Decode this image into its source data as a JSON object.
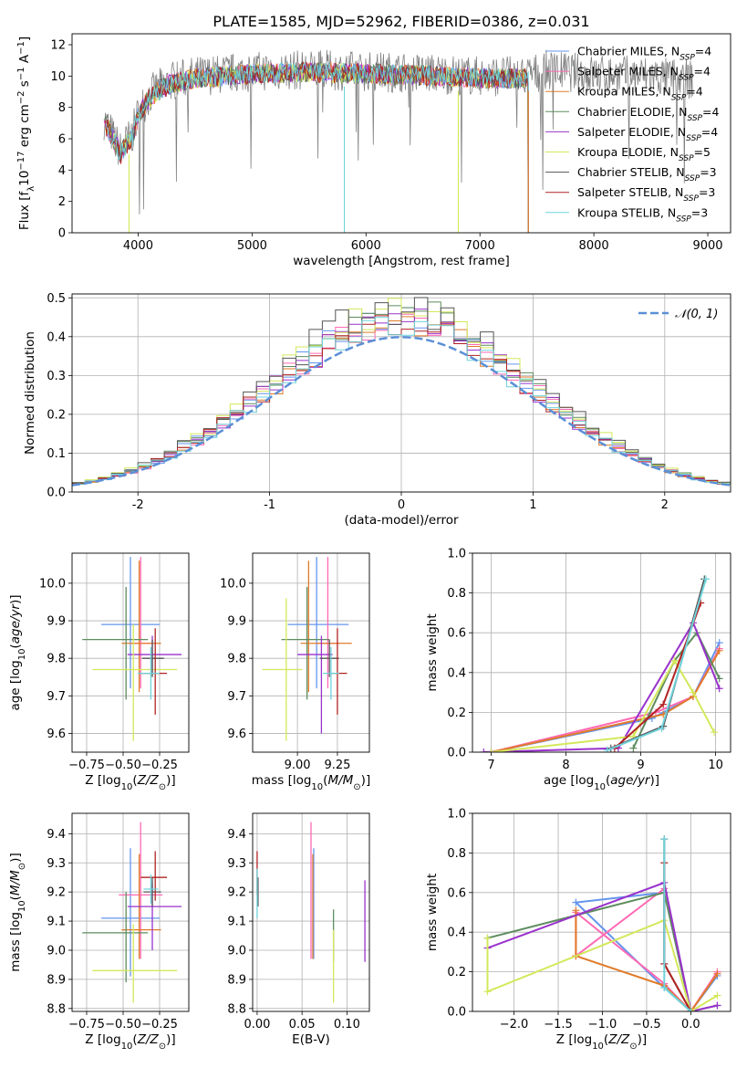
{
  "figure": {
    "title": "PLATE=1585, MJD=52962, FIBERID=0386, z=0.031"
  },
  "model_colors": {
    "Chabrier MILES": "#6495ed",
    "Salpeter MILES": "#ff69b4",
    "Kroupa MILES": "#e07b2a",
    "Chabrier ELODIE": "#5e8c5e",
    "Salpeter ELODIE": "#9932cc",
    "Kroupa ELODIE": "#d4e85a",
    "Chabrier STELIB": "#555555",
    "Salpeter STELIB": "#b22222",
    "Kroupa STELIB": "#6fd3dc"
  },
  "chart_data": [
    {
      "id": "spectrum",
      "type": "line",
      "title": "PLATE=1585, MJD=52962, FIBERID=0386, z=0.031",
      "xlabel": "wavelength [Angstrom, rest frame]",
      "ylabel": "Flux [f",
      "xlim": [
        3420,
        9200
      ],
      "ylim": [
        0,
        12.7
      ],
      "xticks": [
        4000,
        5000,
        6000,
        7000,
        8000,
        9000
      ],
      "yticks": [
        0,
        2,
        4,
        6,
        8,
        10,
        12
      ],
      "grid": false,
      "legend_position": "top-right",
      "legend": [
        {
          "label": "Chabrier MILES, N",
          "n": "4"
        },
        {
          "label": "Salpeter MILES, N",
          "n": "4"
        },
        {
          "label": "Kroupa MILES, N",
          "n": "4"
        },
        {
          "label": "Chabrier ELODIE, N",
          "n": "4"
        },
        {
          "label": "Salpeter ELODIE, N",
          "n": "4"
        },
        {
          "label": "Kroupa ELODIE, N",
          "n": "5"
        },
        {
          "label": "Chabrier STELIB, N",
          "n": "3"
        },
        {
          "label": "Salpeter STELIB, N",
          "n": "3"
        },
        {
          "label": "Kroupa STELIB, N",
          "n": "3"
        }
      ],
      "envelope_points": [
        [
          3700,
          7.2
        ],
        [
          3750,
          6.6
        ],
        [
          3800,
          5.8
        ],
        [
          3850,
          5.2
        ],
        [
          3900,
          5.8
        ],
        [
          3950,
          6.3
        ],
        [
          4000,
          7.6
        ],
        [
          4100,
          8.8
        ],
        [
          4200,
          9.3
        ],
        [
          4300,
          9.7
        ],
        [
          4500,
          10.0
        ],
        [
          4700,
          10.1
        ],
        [
          5000,
          10.3
        ],
        [
          5500,
          10.4
        ],
        [
          6000,
          10.3
        ],
        [
          6500,
          10.2
        ],
        [
          7000,
          10.0
        ],
        [
          7400,
          10.0
        ],
        [
          7600,
          10.4
        ],
        [
          8000,
          10.1
        ],
        [
          8500,
          10.0
        ],
        [
          8800,
          9.8
        ]
      ],
      "model_end_wavelength": 7425,
      "data_end_wavelength": 8870
    },
    {
      "id": "residuals",
      "type": "histogram",
      "xlabel": "(data-model)/error",
      "ylabel": "Normed distribution",
      "xlim": [
        -2.5,
        2.5
      ],
      "ylim": [
        0,
        0.51
      ],
      "xticks": [
        -2,
        -1,
        0,
        1,
        2
      ],
      "yticks": [
        0.0,
        0.1,
        0.2,
        0.3,
        0.4,
        0.5
      ],
      "grid": true,
      "legend_position": "top-right",
      "reference_label": "𝒩(0, 1)",
      "bin_width": 0.1,
      "series_peaks": [
        0.46,
        0.45,
        0.45,
        0.48,
        0.45,
        0.48,
        0.49,
        0.45,
        0.44
      ]
    },
    {
      "id": "age_vs_Z",
      "type": "errorbar",
      "xlabel": "Z [log",
      "ylabel": "age  [log",
      "xlim": [
        -0.85,
        -0.05
      ],
      "ylim": [
        9.55,
        10.08
      ],
      "xticks": [
        -0.75,
        -0.5,
        -0.25
      ],
      "yticks": [
        9.6,
        9.7,
        9.8,
        9.9,
        10.0
      ],
      "grid": true,
      "points": [
        {
          "model": "Chabrier MILES",
          "x": -0.45,
          "xerr": [
            0.2,
            0.2
          ],
          "y": 9.89,
          "yerr": [
            0.17,
            0.18
          ]
        },
        {
          "model": "Salpeter MILES",
          "x": -0.38,
          "xerr": [
            0.07,
            0.07
          ],
          "y": 9.84,
          "yerr": [
            0.12,
            0.23
          ]
        },
        {
          "model": "Kroupa MILES",
          "x": -0.39,
          "xerr": [
            0.12,
            0.15
          ],
          "y": 9.84,
          "yerr": [
            0.13,
            0.22
          ]
        },
        {
          "model": "Chabrier ELODIE",
          "x": -0.48,
          "xerr": [
            0.3,
            0.15
          ],
          "y": 9.85,
          "yerr": [
            0.16,
            0.14
          ]
        },
        {
          "model": "Salpeter ELODIE",
          "x": -0.3,
          "xerr": [
            0.17,
            0.2
          ],
          "y": 9.81,
          "yerr": [
            0.05,
            0.05
          ]
        },
        {
          "model": "Kroupa ELODIE",
          "x": -0.43,
          "xerr": [
            0.28,
            0.3
          ],
          "y": 9.77,
          "yerr": [
            0.19,
            0.12
          ]
        },
        {
          "model": "Chabrier STELIB",
          "x": -0.3,
          "xerr": [
            0.07,
            0.08
          ],
          "y": 9.8,
          "yerr": [
            0.05,
            0.05
          ]
        },
        {
          "model": "Salpeter STELIB",
          "x": -0.28,
          "xerr": [
            0.1,
            0.08
          ],
          "y": 9.76,
          "yerr": [
            0.11,
            0.12
          ]
        },
        {
          "model": "Kroupa STELIB",
          "x": -0.31,
          "xerr": [
            0.09,
            0.06
          ],
          "y": 9.76,
          "yerr": [
            0.07,
            0.07
          ]
        }
      ]
    },
    {
      "id": "age_vs_mass",
      "type": "errorbar",
      "xlabel": "mass [log",
      "ylabel": "",
      "xlim": [
        8.72,
        9.45
      ],
      "ylim": [
        9.55,
        10.08
      ],
      "xticks": [
        9.0,
        9.25
      ],
      "yticks": [
        9.6,
        9.7,
        9.8,
        9.9,
        10.0
      ],
      "grid": true,
      "points": [
        {
          "model": "Chabrier MILES",
          "x": 9.12,
          "xerr": [
            0.18,
            0.2
          ],
          "y": 9.89,
          "yerr": [
            0.17,
            0.18
          ]
        },
        {
          "model": "Salpeter MILES",
          "x": 9.19,
          "xerr": [
            0.07,
            0.07
          ],
          "y": 9.84,
          "yerr": [
            0.12,
            0.23
          ]
        },
        {
          "model": "Kroupa MILES",
          "x": 9.07,
          "xerr": [
            0.05,
            0.27
          ],
          "y": 9.84,
          "yerr": [
            0.13,
            0.22
          ]
        },
        {
          "model": "Chabrier ELODIE",
          "x": 9.06,
          "xerr": [
            0.16,
            0.14
          ],
          "y": 9.85,
          "yerr": [
            0.16,
            0.14
          ]
        },
        {
          "model": "Salpeter ELODIE",
          "x": 9.15,
          "xerr": [
            0.15,
            0.07
          ],
          "y": 9.81,
          "yerr": [
            0.21,
            0.05
          ]
        },
        {
          "model": "Kroupa ELODIE",
          "x": 8.93,
          "xerr": [
            0.15,
            0.1
          ],
          "y": 9.77,
          "yerr": [
            0.19,
            0.19
          ]
        },
        {
          "model": "Chabrier STELIB",
          "x": 9.2,
          "xerr": [
            0.06,
            0.06
          ],
          "y": 9.8,
          "yerr": [
            0.05,
            0.05
          ]
        },
        {
          "model": "Salpeter STELIB",
          "x": 9.25,
          "xerr": [
            0.06,
            0.06
          ],
          "y": 9.76,
          "yerr": [
            0.11,
            0.12
          ]
        },
        {
          "model": "Kroupa STELIB",
          "x": 9.21,
          "xerr": [
            0.05,
            0.05
          ],
          "y": 9.76,
          "yerr": [
            0.07,
            0.07
          ]
        }
      ]
    },
    {
      "id": "mass_weight_vs_age",
      "type": "line",
      "xlabel": "age  [log",
      "ylabel": "mass weight",
      "xlim": [
        6.75,
        10.2
      ],
      "ylim": [
        0,
        1.0
      ],
      "xticks": [
        7,
        8,
        9,
        10
      ],
      "yticks": [
        0.0,
        0.2,
        0.4,
        0.6,
        0.8,
        1.0
      ],
      "grid": true,
      "series": [
        {
          "model": "Chabrier MILES",
          "x": [
            7.0,
            9.15,
            9.7,
            10.05
          ],
          "y": [
            0.0,
            0.17,
            0.28,
            0.55
          ]
        },
        {
          "model": "Salpeter MILES",
          "x": [
            7.0,
            9.2,
            9.7,
            10.05
          ],
          "y": [
            0.0,
            0.2,
            0.28,
            0.52
          ]
        },
        {
          "model": "Kroupa MILES",
          "x": [
            7.0,
            9.3,
            9.7,
            10.05
          ],
          "y": [
            0.0,
            0.19,
            0.28,
            0.51
          ]
        },
        {
          "model": "Chabrier ELODIE",
          "x": [
            8.9,
            9.45,
            9.75,
            10.05
          ],
          "y": [
            0.02,
            0.46,
            0.6,
            0.37
          ]
        },
        {
          "model": "Salpeter ELODIE",
          "x": [
            6.9,
            8.7,
            9.7,
            10.05
          ],
          "y": [
            0.0,
            0.02,
            0.65,
            0.32
          ]
        },
        {
          "model": "Kroupa ELODIE",
          "x": [
            7.0,
            8.9,
            9.45,
            9.7,
            9.98
          ],
          "y": [
            0.0,
            0.08,
            0.46,
            0.3,
            0.1
          ]
        },
        {
          "model": "Chabrier STELIB",
          "x": [
            8.6,
            9.3,
            9.85
          ],
          "y": [
            0.02,
            0.13,
            0.87
          ]
        },
        {
          "model": "Salpeter STELIB",
          "x": [
            8.65,
            9.3,
            9.8
          ],
          "y": [
            0.02,
            0.24,
            0.75
          ]
        },
        {
          "model": "Kroupa STELIB",
          "x": [
            8.55,
            9.28,
            9.87
          ],
          "y": [
            0.01,
            0.12,
            0.87
          ]
        }
      ]
    },
    {
      "id": "mass_vs_Z",
      "type": "errorbar",
      "xlabel": "Z [log",
      "ylabel": "mass [log",
      "xlim": [
        -0.85,
        -0.05
      ],
      "ylim": [
        8.79,
        9.47
      ],
      "xticks": [
        -0.75,
        -0.5,
        -0.25
      ],
      "yticks": [
        8.8,
        8.9,
        9.0,
        9.1,
        9.2,
        9.3,
        9.4
      ],
      "grid": true,
      "points": [
        {
          "model": "Chabrier MILES",
          "x": -0.45,
          "xerr": [
            0.2,
            0.2
          ],
          "y": 9.11,
          "yerr": [
            0.2,
            0.24
          ]
        },
        {
          "model": "Salpeter MILES",
          "x": -0.38,
          "xerr": [
            0.15,
            0.15
          ],
          "y": 9.19,
          "yerr": [
            0.22,
            0.25
          ]
        },
        {
          "model": "Kroupa MILES",
          "x": -0.39,
          "xerr": [
            0.12,
            0.15
          ],
          "y": 9.07,
          "yerr": [
            0.1,
            0.26
          ]
        },
        {
          "model": "Chabrier ELODIE",
          "x": -0.48,
          "xerr": [
            0.3,
            0.15
          ],
          "y": 9.06,
          "yerr": [
            0.17,
            0.14
          ]
        },
        {
          "model": "Salpeter ELODIE",
          "x": -0.3,
          "xerr": [
            0.17,
            0.2
          ],
          "y": 9.15,
          "yerr": [
            0.15,
            0.08
          ]
        },
        {
          "model": "Kroupa ELODIE",
          "x": -0.43,
          "xerr": [
            0.28,
            0.3
          ],
          "y": 8.93,
          "yerr": [
            0.11,
            0.16
          ]
        },
        {
          "model": "Chabrier STELIB",
          "x": -0.3,
          "xerr": [
            0.06,
            0.06
          ],
          "y": 9.2,
          "yerr": [
            0.05,
            0.05
          ]
        },
        {
          "model": "Salpeter STELIB",
          "x": -0.28,
          "xerr": [
            0.1,
            0.08
          ],
          "y": 9.25,
          "yerr": [
            0.08,
            0.09
          ]
        },
        {
          "model": "Kroupa STELIB",
          "x": -0.31,
          "xerr": [
            0.05,
            0.05
          ],
          "y": 9.21,
          "yerr": [
            0.05,
            0.05
          ]
        }
      ]
    },
    {
      "id": "mass_vs_EBV",
      "type": "errorbar",
      "xlabel": "E(B-V)",
      "ylabel": "",
      "xlim": [
        -0.005,
        0.125
      ],
      "ylim": [
        8.79,
        9.47
      ],
      "xticks": [
        0.0,
        0.05,
        0.1
      ],
      "yticks": [
        8.8,
        8.9,
        9.0,
        9.1,
        9.2,
        9.3,
        9.4
      ],
      "grid": true,
      "points": [
        {
          "model": "Chabrier MILES",
          "x": 0.063,
          "xerr": [
            0,
            0
          ],
          "y": 9.11,
          "yerr": [
            0.14,
            0.24
          ]
        },
        {
          "model": "Salpeter MILES",
          "x": 0.06,
          "xerr": [
            0,
            0
          ],
          "y": 9.19,
          "yerr": [
            0.22,
            0.25
          ]
        },
        {
          "model": "Kroupa MILES",
          "x": 0.062,
          "xerr": [
            0,
            0
          ],
          "y": 9.07,
          "yerr": [
            0.1,
            0.26
          ]
        },
        {
          "model": "Chabrier ELODIE",
          "x": 0.085,
          "xerr": [
            0,
            0
          ],
          "y": 9.06,
          "yerr": [
            0.1,
            0.08
          ]
        },
        {
          "model": "Salpeter ELODIE",
          "x": 0.12,
          "xerr": [
            0,
            0
          ],
          "y": 9.1,
          "yerr": [
            0.14,
            0.14
          ]
        },
        {
          "model": "Kroupa ELODIE",
          "x": 0.085,
          "xerr": [
            0,
            0
          ],
          "y": 8.93,
          "yerr": [
            0.11,
            0.14
          ]
        },
        {
          "model": "Chabrier STELIB",
          "x": 0.001,
          "xerr": [
            0,
            0
          ],
          "y": 9.2,
          "yerr": [
            0.05,
            0.05
          ]
        },
        {
          "model": "Salpeter STELIB",
          "x": 0.0,
          "xerr": [
            0,
            0
          ],
          "y": 9.25,
          "yerr": [
            0.06,
            0.09
          ]
        },
        {
          "model": "Kroupa STELIB",
          "x": 0.0,
          "xerr": [
            0,
            0
          ],
          "y": 9.21,
          "yerr": [
            0.1,
            0.07
          ]
        }
      ]
    },
    {
      "id": "mass_weight_vs_Z",
      "type": "line",
      "xlabel": "Z [log",
      "ylabel": "mass weight",
      "xlim": [
        -2.47,
        0.45
      ],
      "ylim": [
        0,
        1.0
      ],
      "xticks": [
        -2.0,
        -1.5,
        -1.0,
        -0.5,
        0.0
      ],
      "yticks": [
        0.0,
        0.2,
        0.4,
        0.6,
        0.8,
        1.0
      ],
      "grid": true,
      "series": [
        {
          "model": "Chabrier MILES",
          "x": [
            0.3,
            0.0,
            -0.3,
            -1.3,
            -0.3
          ],
          "y": [
            0.18,
            0.0,
            0.12,
            0.55,
            0.6
          ]
        },
        {
          "model": "Salpeter MILES",
          "x": [
            0.3,
            0.0,
            -0.3,
            -1.3,
            -1.3,
            -0.3
          ],
          "y": [
            0.2,
            0.0,
            0.14,
            0.5,
            0.28,
            0.62
          ]
        },
        {
          "model": "Kroupa MILES",
          "x": [
            0.3,
            0.0,
            -0.3,
            -1.3,
            -1.3
          ],
          "y": [
            0.19,
            0.0,
            0.13,
            0.28,
            0.51
          ]
        },
        {
          "model": "Chabrier ELODIE",
          "x": [
            -2.3,
            -0.3,
            0.0,
            0.3
          ],
          "y": [
            0.37,
            0.6,
            0.0,
            0.03
          ]
        },
        {
          "model": "Salpeter ELODIE",
          "x": [
            -2.3,
            -0.3,
            0.0,
            0.3
          ],
          "y": [
            0.32,
            0.65,
            0.0,
            0.03
          ]
        },
        {
          "model": "Kroupa ELODIE",
          "x": [
            -2.3,
            -2.3,
            -0.3,
            0.0,
            0.3
          ],
          "y": [
            0.37,
            0.1,
            0.46,
            0.0,
            0.08
          ]
        },
        {
          "model": "Chabrier STELIB",
          "x": [
            -0.3,
            -0.3,
            0.0
          ],
          "y": [
            0.87,
            0.24,
            0.0
          ]
        },
        {
          "model": "Salpeter STELIB",
          "x": [
            -0.3,
            -0.3,
            0.0
          ],
          "y": [
            0.75,
            0.24,
            0.0
          ]
        },
        {
          "model": "Kroupa STELIB",
          "x": [
            -0.3,
            -0.3,
            0.0
          ],
          "y": [
            0.87,
            0.12,
            0.0
          ]
        }
      ]
    }
  ]
}
